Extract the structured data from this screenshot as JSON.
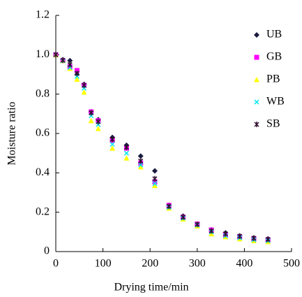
{
  "chart_data": {
    "type": "scatter",
    "xlabel": "Drying time/min",
    "ylabel": "Moisture ratio",
    "x": [
      0,
      15,
      30,
      45,
      60,
      75,
      90,
      120,
      150,
      180,
      210,
      240,
      270,
      300,
      330,
      360,
      390,
      420,
      450
    ],
    "series": [
      {
        "name": "UB",
        "color": "#1a1a40",
        "marker": "diamond",
        "values": [
          1.0,
          0.975,
          0.97,
          0.9,
          0.85,
          0.71,
          0.67,
          0.58,
          0.54,
          0.485,
          0.41,
          0.235,
          0.18,
          0.14,
          0.11,
          0.095,
          0.08,
          0.07,
          0.065
        ]
      },
      {
        "name": "GB",
        "color": "#ff00ff",
        "marker": "square",
        "values": [
          1.0,
          0.97,
          0.94,
          0.92,
          0.845,
          0.71,
          0.665,
          0.565,
          0.525,
          0.45,
          0.355,
          0.235,
          0.175,
          0.14,
          0.11,
          0.085,
          0.075,
          0.065,
          0.06
        ]
      },
      {
        "name": "PB",
        "color": "#ffff00",
        "marker": "triangle",
        "values": [
          1.0,
          0.97,
          0.93,
          0.875,
          0.81,
          0.665,
          0.625,
          0.525,
          0.475,
          0.43,
          0.335,
          0.22,
          0.165,
          0.13,
          0.09,
          0.075,
          0.065,
          0.055,
          0.05
        ]
      },
      {
        "name": "WB",
        "color": "#00e5ee",
        "marker": "x",
        "values": [
          1.0,
          0.97,
          0.935,
          0.89,
          0.83,
          0.69,
          0.645,
          0.545,
          0.5,
          0.44,
          0.345,
          0.225,
          0.17,
          0.135,
          0.1,
          0.08,
          0.07,
          0.06,
          0.055
        ]
      },
      {
        "name": "SB",
        "color": "#301030",
        "marker": "star",
        "values": [
          1.0,
          0.972,
          0.95,
          0.905,
          0.845,
          0.705,
          0.66,
          0.57,
          0.53,
          0.46,
          0.37,
          0.23,
          0.175,
          0.138,
          0.105,
          0.09,
          0.078,
          0.068,
          0.062
        ]
      }
    ],
    "xlim": [
      0,
      500
    ],
    "xticks": [
      0,
      100,
      200,
      300,
      400,
      500
    ],
    "ylim": [
      0,
      1.2
    ],
    "yticks": [
      0,
      0.2,
      0.4,
      0.6,
      0.8,
      {
        "value": 1,
        "label": "1.0"
      },
      1.2
    ],
    "legend": "upper right"
  }
}
